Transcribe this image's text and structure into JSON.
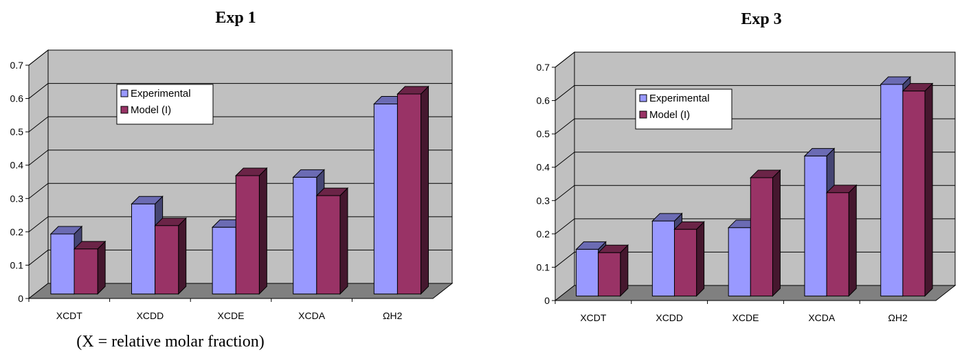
{
  "chart_data": [
    {
      "type": "bar",
      "title": "Exp 1",
      "categories": [
        "XCDT",
        "XCDD",
        "XCDE",
        "XCDA",
        "ΩH2"
      ],
      "series": [
        {
          "name": "Experimental",
          "values": [
            0.18,
            0.27,
            0.2,
            0.35,
            0.57
          ],
          "color": "#9999ff"
        },
        {
          "name": "Model (I)",
          "values": [
            0.135,
            0.205,
            0.355,
            0.295,
            0.6
          ],
          "color": "#993366"
        }
      ],
      "ylim": [
        0,
        0.7
      ],
      "yticks": [
        "0",
        "0.1",
        "0.2",
        "0.3",
        "0.4",
        "0.5",
        "0.6",
        "0.7"
      ],
      "grid": true,
      "legend": "top-center",
      "note": "(X = relative molar fraction)"
    },
    {
      "type": "bar",
      "title": "Exp 3",
      "categories": [
        "XCDT",
        "XCDD",
        "XCDE",
        "XCDA",
        "ΩH2"
      ],
      "series": [
        {
          "name": "Experimental",
          "values": [
            0.14,
            0.225,
            0.205,
            0.42,
            0.635
          ],
          "color": "#9999ff"
        },
        {
          "name": "Model (I)",
          "values": [
            0.13,
            0.2,
            0.355,
            0.31,
            0.615
          ],
          "color": "#993366"
        }
      ],
      "ylim": [
        0,
        0.7
      ],
      "yticks": [
        "0",
        "0.1",
        "0.2",
        "0.3",
        "0.4",
        "0.5",
        "0.6",
        "0.7"
      ],
      "grid": true,
      "legend": "top-left"
    }
  ]
}
